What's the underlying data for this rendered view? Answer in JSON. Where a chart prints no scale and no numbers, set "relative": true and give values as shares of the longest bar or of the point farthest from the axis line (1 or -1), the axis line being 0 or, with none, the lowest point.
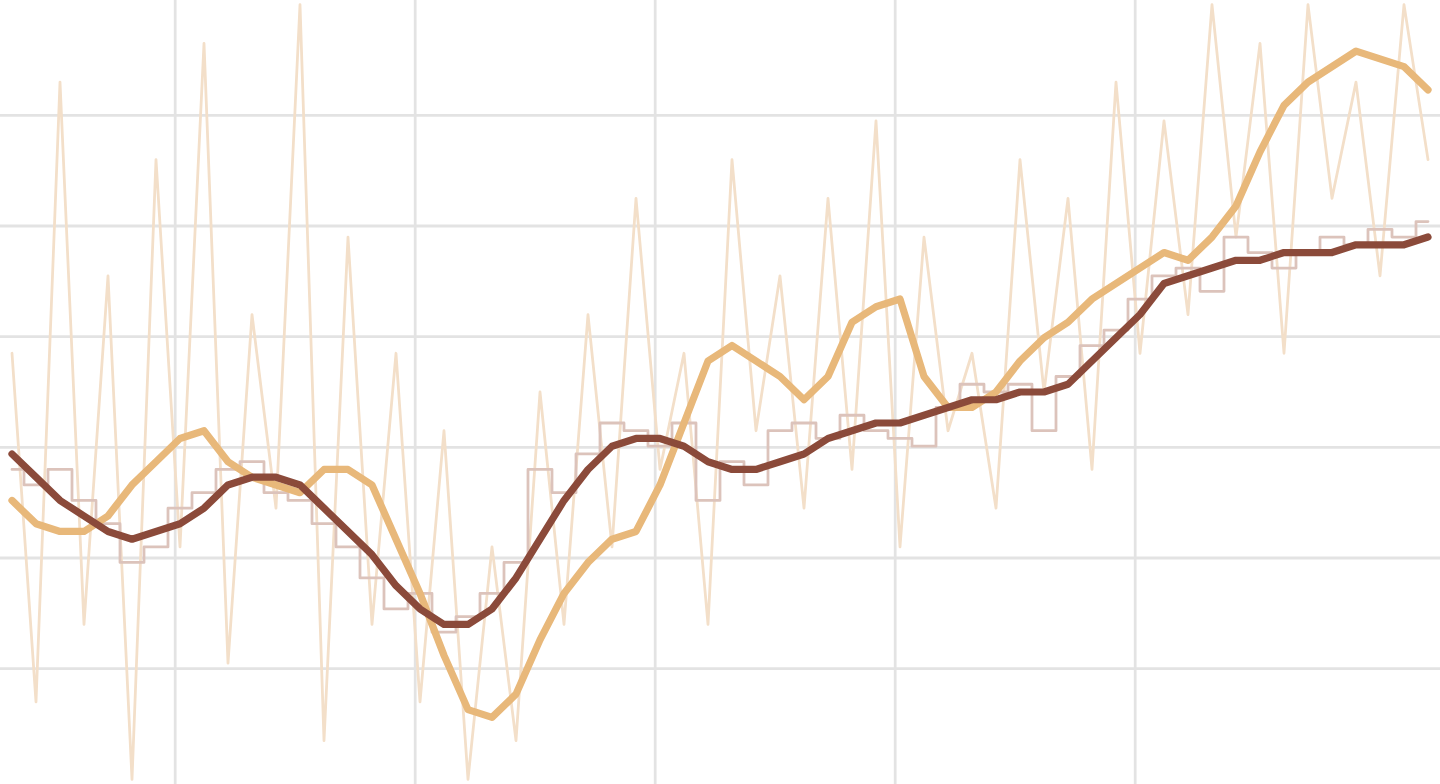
{
  "chart_data": {
    "type": "line",
    "relative": true,
    "grid": true,
    "categories": [
      null,
      null,
      null,
      null,
      null,
      null,
      null,
      null,
      null,
      null,
      null,
      null,
      null,
      null,
      null,
      null,
      null,
      null,
      null,
      null,
      null,
      null,
      null,
      null,
      null,
      null,
      null,
      null,
      null,
      null,
      null,
      null,
      null,
      null,
      null,
      null,
      null,
      null,
      null,
      null,
      null,
      null,
      null,
      null,
      null,
      null,
      null,
      null,
      null,
      null,
      null,
      null,
      null,
      null,
      null,
      null,
      null,
      null,
      null,
      null
    ],
    "series": [
      {
        "color": "#f3dfc9",
        "values": [
          0.55,
          0.1,
          0.9,
          0.2,
          0.65,
          0,
          0.8,
          0.3,
          0.95,
          0.15,
          0.6,
          0.35,
          1,
          0.05,
          0.7,
          0.2,
          0.55,
          0.1,
          0.45,
          0,
          0.3,
          0.05,
          0.5,
          0.2,
          0.6,
          0.3,
          0.75,
          0.4,
          0.55,
          0.2,
          0.8,
          0.45,
          0.65,
          0.35,
          0.75,
          0.4,
          0.85,
          0.3,
          0.7,
          0.45,
          0.55,
          0.35,
          0.8,
          0.5,
          0.75,
          0.4,
          0.9,
          0.55,
          0.85,
          0.6,
          1,
          0.7,
          0.95,
          0.55,
          1,
          0.75,
          0.9,
          0.65,
          1,
          0.8
        ]
      },
      {
        "color": "#dcc3bb",
        "type": "step",
        "values": [
          0.4,
          0.38,
          0.4,
          0.36,
          0.33,
          0.28,
          0.3,
          0.35,
          0.37,
          0.4,
          0.41,
          0.37,
          0.36,
          0.33,
          0.3,
          0.26,
          0.22,
          0.24,
          0.19,
          0.21,
          0.24,
          0.28,
          0.4,
          0.37,
          0.42,
          0.46,
          0.45,
          0.43,
          0.46,
          0.36,
          0.41,
          0.38,
          0.45,
          0.46,
          0.44,
          0.47,
          0.45,
          0.44,
          0.43,
          0.48,
          0.51,
          0.5,
          0.51,
          0.45,
          0.52,
          0.56,
          0.58,
          0.62,
          0.65,
          0.66,
          0.63,
          0.7,
          0.68,
          0.66,
          0.68,
          0.7,
          0.69,
          0.71,
          0.7,
          0.72
        ]
      },
      {
        "color": "#e8b87a",
        "values": [
          0.36,
          0.33,
          0.32,
          0.32,
          0.34,
          0.38,
          0.41,
          0.44,
          0.45,
          0.41,
          0.39,
          0.38,
          0.37,
          0.4,
          0.4,
          0.38,
          0.31,
          0.24,
          0.16,
          0.09,
          0.08,
          0.11,
          0.18,
          0.24,
          0.28,
          0.31,
          0.32,
          0.38,
          0.46,
          0.54,
          0.56,
          0.54,
          0.52,
          0.49,
          0.52,
          0.59,
          0.61,
          0.62,
          0.52,
          0.48,
          0.48,
          0.5,
          0.54,
          0.57,
          0.59,
          0.62,
          0.64,
          0.66,
          0.68,
          0.67,
          0.7,
          0.74,
          0.81,
          0.87,
          0.9,
          0.92,
          0.94,
          0.93,
          0.92,
          0.89
        ]
      },
      {
        "color": "#8b4a3a",
        "values": [
          0.42,
          0.39,
          0.36,
          0.34,
          0.32,
          0.31,
          0.32,
          0.33,
          0.35,
          0.38,
          0.39,
          0.39,
          0.38,
          0.35,
          0.32,
          0.29,
          0.25,
          0.22,
          0.2,
          0.2,
          0.22,
          0.26,
          0.31,
          0.36,
          0.4,
          0.43,
          0.44,
          0.44,
          0.43,
          0.41,
          0.4,
          0.4,
          0.41,
          0.42,
          0.44,
          0.45,
          0.46,
          0.46,
          0.47,
          0.48,
          0.49,
          0.49,
          0.5,
          0.5,
          0.51,
          0.54,
          0.57,
          0.6,
          0.64,
          0.65,
          0.66,
          0.67,
          0.67,
          0.68,
          0.68,
          0.68,
          0.69,
          0.69,
          0.69,
          0.7
        ]
      }
    ]
  }
}
